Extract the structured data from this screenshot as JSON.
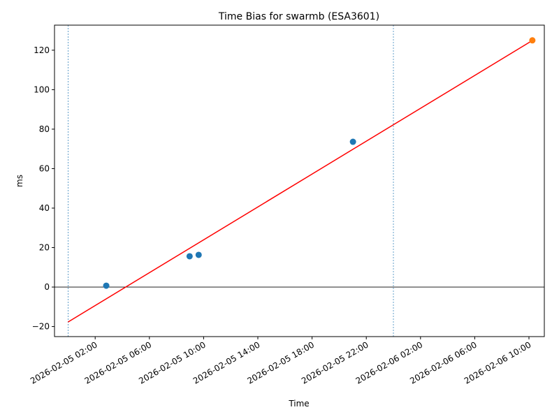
{
  "chart_data": {
    "type": "scatter",
    "title": "Time Bias for swarmb (ESA3601)",
    "x_label": "Time",
    "y_label": "ms",
    "xlim": [
      "2026-02-04 23:00",
      "2026-02-06 11:08"
    ],
    "xticks": [
      "2026-02-05 02:00",
      "2026-02-05 06:00",
      "2026-02-05 10:00",
      "2026-02-05 14:00",
      "2026-02-05 18:00",
      "2026-02-05 22:00",
      "2026-02-06 02:00",
      "2026-02-06 06:00",
      "2026-02-06 10:00"
    ],
    "ylim": [
      -25.1,
      132.7
    ],
    "yticks": [
      {
        "value": -20,
        "label": "−20"
      },
      0,
      20,
      40,
      60,
      80,
      100,
      120
    ],
    "series": [
      {
        "color": "#1f77b4",
        "x": [
          "2026-02-05 02:49",
          "2026-02-05 08:58",
          "2026-02-05 09:38",
          "2026-02-05 21:01"
        ],
        "values": [
          0.7,
          15.6,
          16.3,
          73.6
        ]
      },
      {
        "color": "#ff7f0e",
        "x": [
          "2026-02-06 10:15"
        ],
        "values": [
          125
        ]
      }
    ],
    "fit": {
      "color": "#ff0000",
      "x": [
        "2026-02-05 00:00",
        "2026-02-06 10:15"
      ],
      "values": [
        -17.7,
        124.9
      ]
    },
    "hlines": [
      0
    ],
    "vlines": [
      "2026-02-05 00:00",
      "2026-02-06 00:00"
    ]
  }
}
